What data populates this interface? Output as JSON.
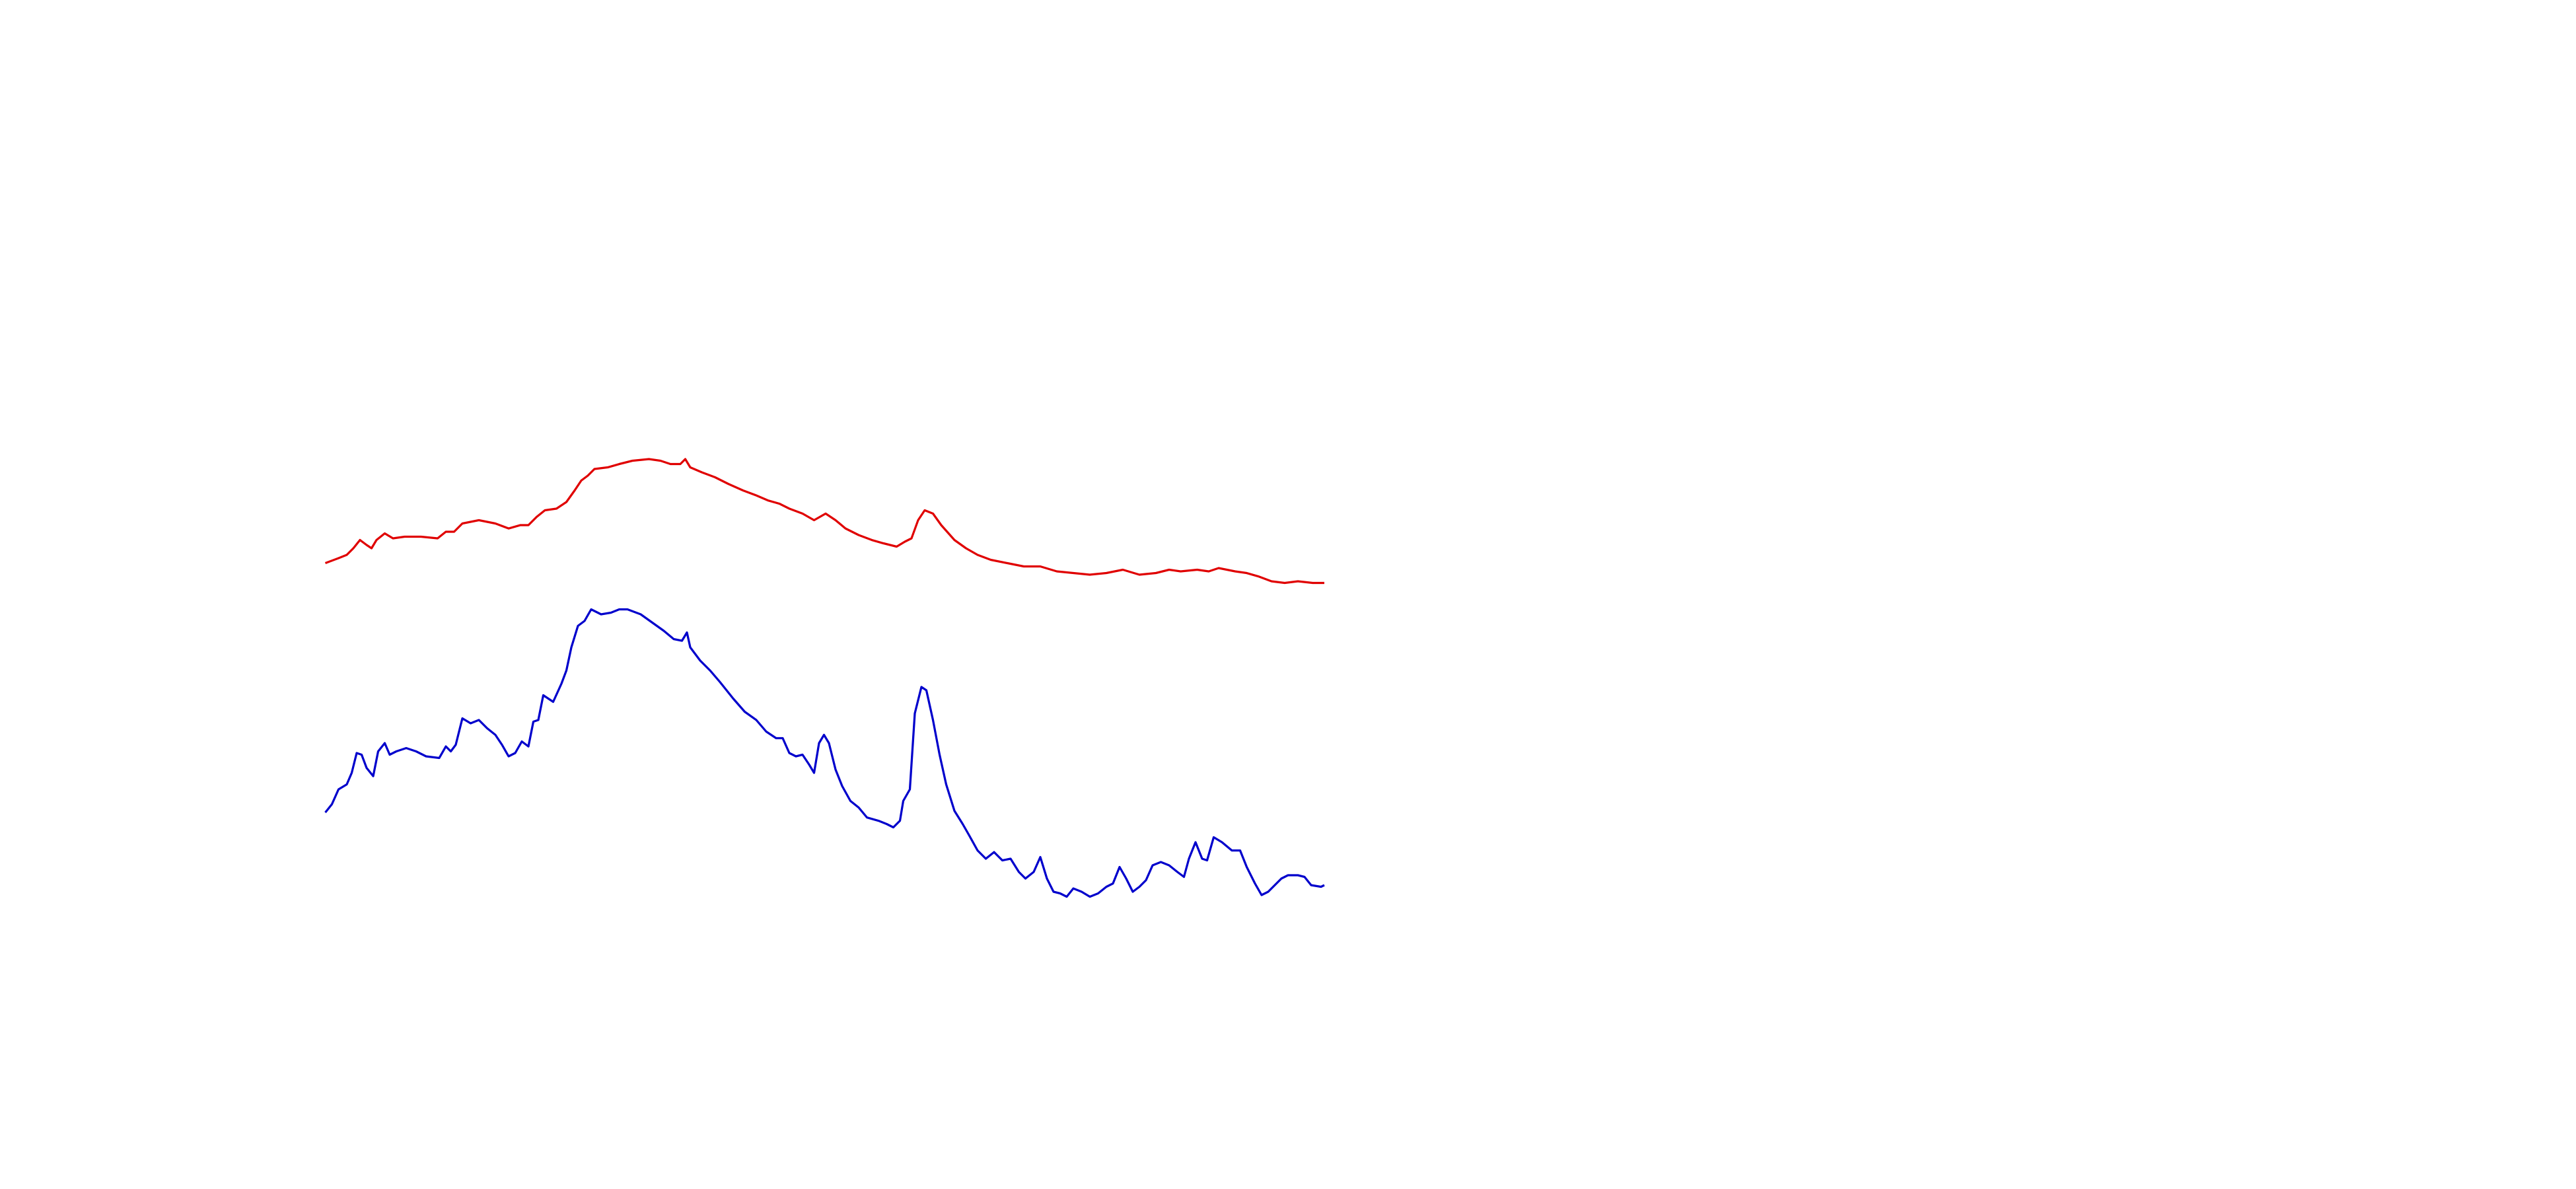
{
  "chart_data": {
    "type": "line",
    "xlim": [
      0,
      1560
    ],
    "ylim": [
      0,
      720
    ],
    "series": [
      {
        "color": "#e00000",
        "x": [
          197,
          205,
          210,
          214,
          218,
          222,
          225,
          228,
          233,
          238,
          245,
          255,
          265,
          270,
          275,
          280,
          290,
          300,
          308,
          315,
          320,
          325,
          330,
          337,
          343,
          348,
          352,
          356,
          360,
          368,
          375,
          383,
          393,
          400,
          406,
          412,
          415,
          418,
          425,
          433,
          441,
          450,
          458,
          465,
          472,
          478,
          486,
          493,
          500,
          506,
          512,
          520,
          528,
          535,
          543,
          548,
          552,
          556,
          560,
          565,
          570,
          578,
          585,
          592,
          600,
          610,
          620,
          630,
          640,
          650,
          660,
          670,
          680,
          690,
          700,
          708,
          715,
          725,
          732,
          738,
          748,
          755,
          762,
          770,
          778,
          786,
          795,
          802
        ],
        "values": [
          379,
          382,
          384,
          388,
          393,
          390,
          388,
          393,
          397,
          394,
          395,
          395,
          394,
          398,
          398,
          403,
          405,
          403,
          400,
          402,
          402,
          407,
          411,
          412,
          416,
          423,
          429,
          432,
          436,
          437,
          439,
          441,
          442,
          441,
          439,
          439,
          442,
          437,
          434,
          431,
          427,
          423,
          420,
          417,
          415,
          412,
          409,
          405,
          409,
          405,
          400,
          396,
          393,
          391,
          389,
          392,
          394,
          405,
          411,
          409,
          402,
          393,
          388,
          384,
          381,
          379,
          377,
          377,
          374,
          373,
          372,
          373,
          375,
          372,
          373,
          375,
          374,
          375,
          374,
          376,
          374,
          373,
          371,
          368,
          367,
          368,
          367,
          367
        ]
      },
      {
        "color": "#0000cc",
        "x": [
          197,
          201,
          205,
          210,
          213,
          216,
          219,
          222,
          226,
          229,
          233,
          236,
          240,
          246,
          252,
          258,
          266,
          270,
          273,
          276,
          280,
          285,
          290,
          295,
          300,
          304,
          308,
          312,
          316,
          320,
          323,
          326,
          329,
          335,
          340,
          343,
          346,
          350,
          354,
          358,
          364,
          370,
          375,
          380,
          388,
          395,
          402,
          408,
          413,
          416,
          418,
          424,
          430,
          436,
          444,
          451,
          458,
          464,
          470,
          474,
          478,
          482,
          486,
          490,
          493,
          496,
          499,
          502,
          506,
          510,
          515,
          520,
          525,
          532,
          537,
          541,
          545,
          547,
          551,
          554,
          558,
          561,
          565,
          569,
          573,
          578,
          583,
          587,
          592,
          597,
          602,
          607,
          612,
          617,
          621,
          626,
          630,
          634,
          638,
          642,
          646,
          650,
          655,
          660,
          665,
          670,
          674,
          678,
          682,
          686,
          690,
          694,
          698,
          703,
          708,
          713,
          717,
          720,
          724,
          728,
          731,
          735,
          740,
          746,
          751,
          755,
          760,
          764,
          768,
          772,
          776,
          780,
          786,
          790,
          794,
          800,
          802
        ],
        "values": [
          228,
          233,
          242,
          245,
          252,
          264,
          263,
          255,
          250,
          265,
          270,
          263,
          265,
          267,
          265,
          262,
          261,
          268,
          265,
          269,
          285,
          282,
          284,
          279,
          275,
          269,
          262,
          264,
          271,
          268,
          283,
          284,
          299,
          295,
          306,
          314,
          328,
          341,
          344,
          351,
          348,
          349,
          351,
          351,
          348,
          343,
          338,
          333,
          332,
          337,
          328,
          320,
          314,
          307,
          297,
          289,
          284,
          277,
          273,
          273,
          264,
          262,
          263,
          257,
          252,
          270,
          275,
          270,
          254,
          244,
          235,
          231,
          225,
          223,
          221,
          219,
          223,
          235,
          242,
          288,
          304,
          302,
          284,
          263,
          245,
          229,
          221,
          214,
          205,
          200,
          204,
          199,
          200,
          192,
          188,
          192,
          201,
          188,
          180,
          179,
          177,
          182,
          180,
          177,
          179,
          183,
          185,
          195,
          188,
          180,
          183,
          187,
          196,
          198,
          196,
          192,
          189,
          200,
          210,
          200,
          199,
          213,
          210,
          205,
          205,
          195,
          185,
          178,
          180,
          184,
          188,
          190,
          190,
          189,
          184,
          183,
          184
        ]
      }
    ]
  }
}
